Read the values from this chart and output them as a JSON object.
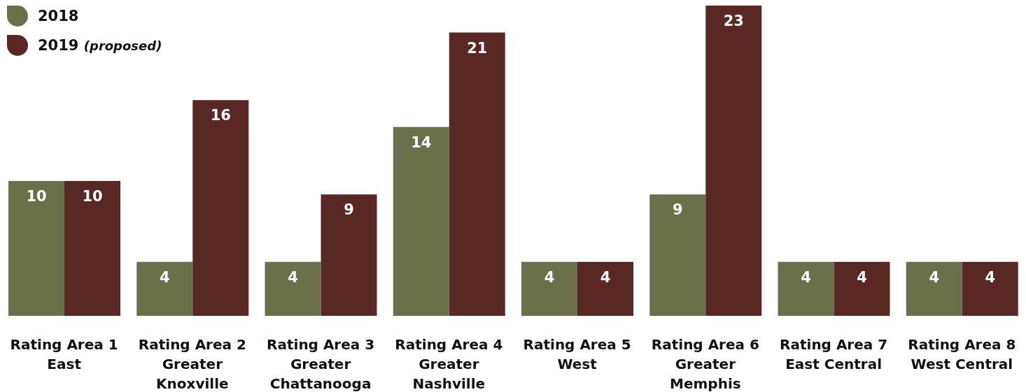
{
  "chart_data": {
    "type": "bar",
    "categories": [
      "Rating Area 1\nEast",
      "Rating Area 2\nGreater\nKnoxville",
      "Rating Area 3\nGreater\nChattanooga",
      "Rating Area 4\nGreater\nNashville",
      "Rating Area 5\nWest",
      "Rating Area 6\nGreater\nMemphis",
      "Rating Area 7\nEast Central",
      "Rating Area 8\nWest Central"
    ],
    "series": [
      {
        "name": "2018",
        "color": "#6a7149",
        "values": [
          10,
          4,
          4,
          14,
          4,
          9,
          4,
          4
        ]
      },
      {
        "name": "2019 (proposed)",
        "color": "#5a2823",
        "values": [
          10,
          16,
          9,
          21,
          4,
          23,
          4,
          4
        ]
      }
    ],
    "data_labels": true,
    "legend": "top left",
    "grid": false
  }
}
